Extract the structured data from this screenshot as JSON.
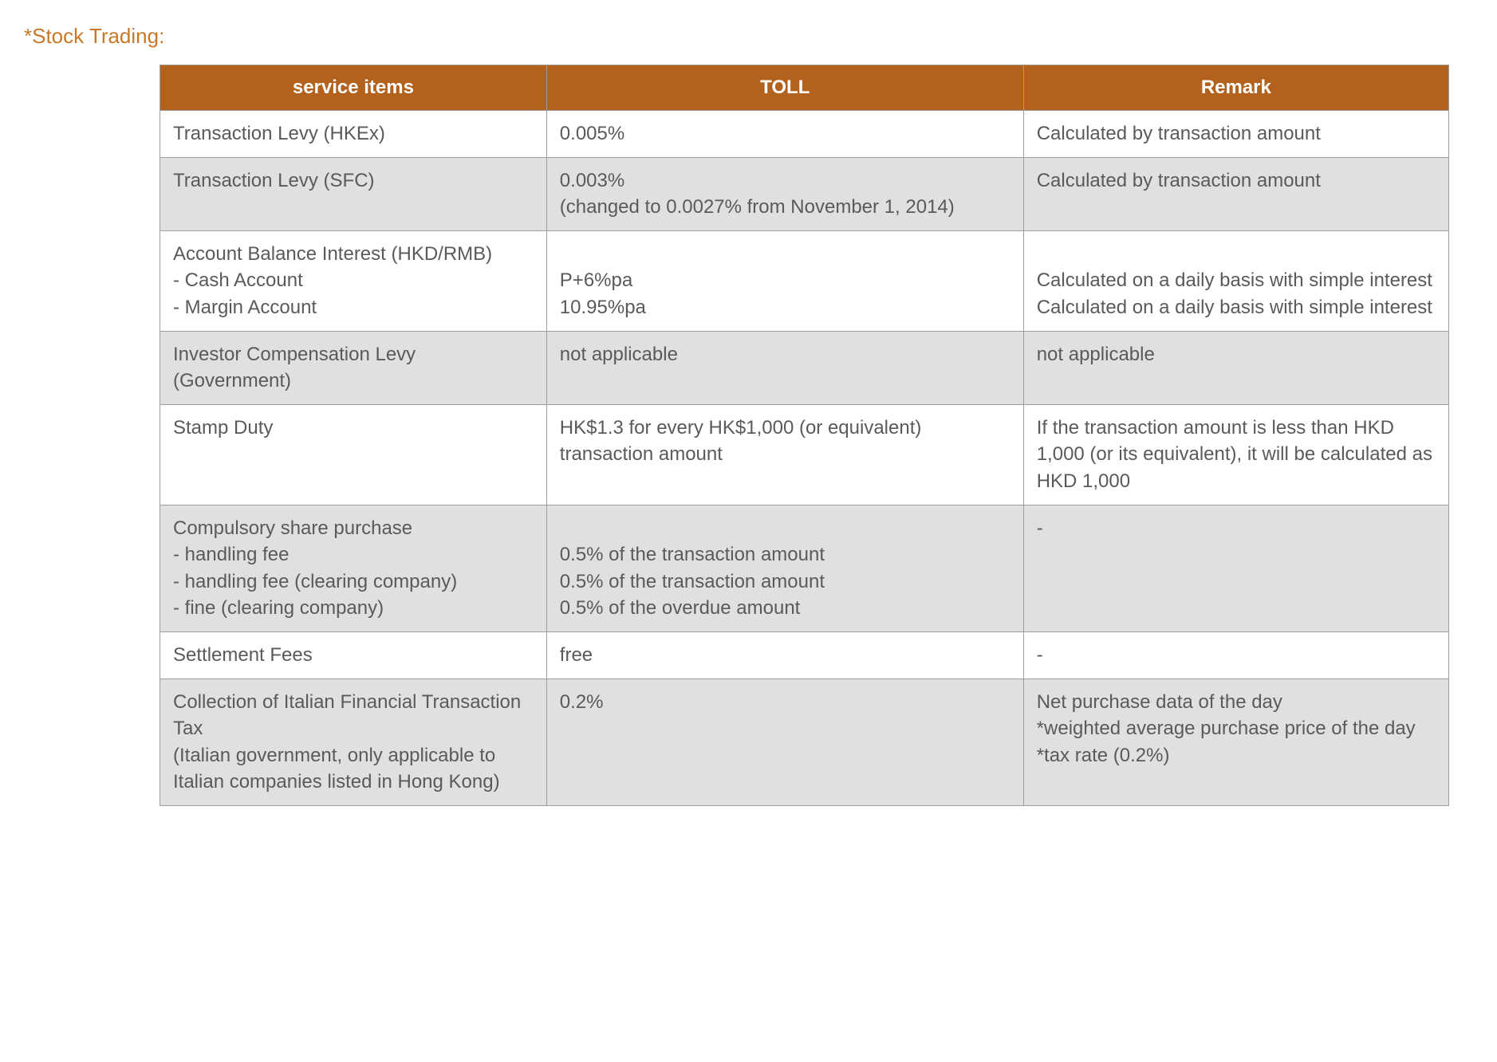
{
  "page": {
    "title": "*Stock Trading:"
  },
  "table": {
    "headers": {
      "service": "service items",
      "toll": "TOLL",
      "remark": "Remark"
    },
    "rows": [
      {
        "service": "Transaction Levy (HKEx)",
        "toll": "0.005%",
        "remark": "Calculated by transaction amount"
      },
      {
        "service": "Transaction Levy (SFC)",
        "toll": "0.003%\n(changed to 0.0027% from November 1, 2014)",
        "remark": "Calculated by transaction amount"
      },
      {
        "service": "Account Balance Interest (HKD/RMB)\n- Cash Account\n- Margin Account",
        "toll": "\nP+6%pa\n10.95%pa",
        "remark": "\nCalculated on a daily basis with simple interest\nCalculated on a daily basis with simple interest"
      },
      {
        "service": "Investor Compensation Levy (Government)",
        "toll": "not applicable",
        "remark": "not applicable"
      },
      {
        "service": "Stamp Duty",
        "toll": "HK$1.3 for every HK$1,000 (or equivalent) transaction amount",
        "remark": "If the transaction amount is less than HKD 1,000 (or its equivalent), it will be calculated as HKD 1,000"
      },
      {
        "service": "Compulsory share purchase\n- handling fee\n- handling fee (clearing company)\n- fine (clearing company)",
        "toll": "\n0.5% of the transaction amount\n0.5% of the transaction amount\n0.5% of the overdue amount",
        "remark": "-"
      },
      {
        "service": "Settlement Fees",
        "toll": "free",
        "remark": "-"
      },
      {
        "service": "Collection of Italian Financial Transaction Tax\n(Italian government, only applicable to Italian companies listed in Hong Kong)",
        "toll": "0.2%",
        "remark": "Net purchase data of the day\n*weighted average purchase price of the day\n*tax rate (0.2%)"
      }
    ]
  },
  "styling": {
    "title_color": "#c77929",
    "header_bg": "#b3621d",
    "header_text_color": "#ffffff",
    "odd_row_bg": "#ffffff",
    "even_row_bg": "#e0e0e0",
    "border_color": "#9e9e9e",
    "text_color": "#5a5a5a",
    "body_bg": "#ffffff",
    "font_size_title": 26,
    "font_size_header": 24,
    "font_size_cell": 24,
    "column_widths": {
      "service": "30%",
      "toll": "37%",
      "remark": "33%"
    }
  }
}
